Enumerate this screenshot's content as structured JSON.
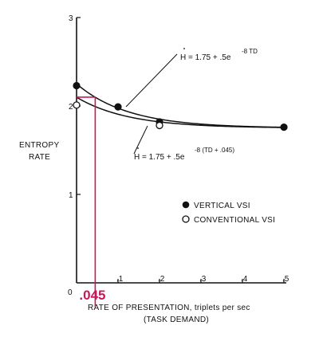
{
  "chart_data": {
    "type": "scatter",
    "ylabel_line1": "ENTROPY",
    "ylabel_line2": "RATE",
    "xlabel_line1": "RATE OF PRESENTATION, triplets per sec",
    "xlabel_line2": "(TASK DEMAND)",
    "xlim": [
      0,
      0.5
    ],
    "ylim": [
      0,
      3
    ],
    "x_ticks": [
      {
        "value": 0.1,
        "label": ".1"
      },
      {
        "value": 0.2,
        "label": ".2"
      },
      {
        "value": 0.3,
        "label": ".3"
      },
      {
        "value": 0.4,
        "label": ".4"
      },
      {
        "value": 0.5,
        "label": ".5"
      }
    ],
    "x_zero_label": "0",
    "y_ticks": [
      {
        "value": 1,
        "label": "1"
      },
      {
        "value": 2,
        "label": "2"
      },
      {
        "value": 3,
        "label": "3"
      }
    ],
    "series": [
      {
        "name": "VERTICAL VSI",
        "marker": "filled-circle",
        "points": [
          [
            0,
            2.23
          ],
          [
            0.1,
            1.99
          ],
          [
            0.2,
            1.82
          ],
          [
            0.5,
            1.76
          ]
        ]
      },
      {
        "name": "CONVENTIONAL VSI",
        "marker": "open-circle",
        "points": [
          [
            0,
            2.01
          ],
          [
            0.2,
            1.78
          ]
        ]
      }
    ],
    "curves": [
      {
        "name": "upper",
        "a": 1.75,
        "b": 0.5,
        "k": 8,
        "shift": 0
      },
      {
        "name": "lower",
        "a": 1.75,
        "b": 0.5,
        "k": 8,
        "shift": 0.045
      }
    ],
    "annotations": {
      "upper_main": "H = 1.75 + .5e",
      "upper_sup": "-8 TD",
      "lower_main": "H = 1.75 + .5e",
      "lower_sup": "-8 (TD + .045)"
    },
    "highlight": {
      "x": 0.045,
      "y": 2.1,
      "label": ".045",
      "color": "#c8185a"
    },
    "legend_placement": "center-right"
  }
}
